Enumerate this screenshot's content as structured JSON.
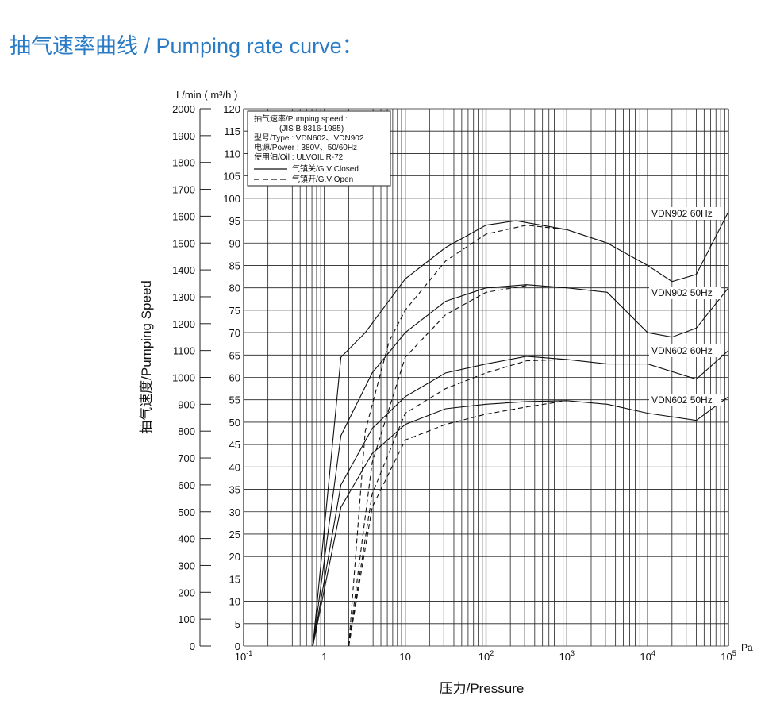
{
  "page_title": "抽气速率曲线 / Pumping rate curve：",
  "chart_data": {
    "type": "line",
    "title": "抽气速率曲线 / Pumping rate curve：",
    "xlabel": "压力/Pressure",
    "x_unit": "Pa",
    "ylabel": "抽气速度/Pumping Speed",
    "y_unit_label": "L/min ( m³/h )",
    "xscale": "log",
    "xlim": [
      0.1,
      100000
    ],
    "ylim": [
      0,
      120
    ],
    "ylim_left": [
      0,
      2000
    ],
    "x_ticks": [
      {
        "base": "10",
        "exp": "-1"
      },
      {
        "base": "1",
        "exp": ""
      },
      {
        "base": "10",
        "exp": ""
      },
      {
        "base": "10",
        "exp": "2"
      },
      {
        "base": "10",
        "exp": "3"
      },
      {
        "base": "10",
        "exp": "4"
      },
      {
        "base": "10",
        "exp": "5"
      }
    ],
    "y_ticks": [
      0,
      5,
      10,
      15,
      20,
      25,
      30,
      35,
      40,
      45,
      50,
      55,
      60,
      65,
      70,
      75,
      80,
      85,
      90,
      95,
      100,
      105,
      110,
      115,
      120
    ],
    "y_ticks_left": [
      0,
      100,
      200,
      300,
      400,
      500,
      600,
      700,
      800,
      900,
      1000,
      1100,
      1200,
      1300,
      1400,
      1500,
      1600,
      1700,
      1800,
      1900,
      2000
    ],
    "grid": true,
    "legend": {
      "lines": [
        "抽气速率/Pumping speed :",
        "(JIS B 8316-1985)",
        "型号/Type  : VDN602、VDN902",
        "电源/Power  : 380V、50/60Hz",
        "使用油/Oil : ULVOIL R-72"
      ],
      "solid": "气镇关/G.V Closed",
      "dashed": "气镇开/G.V Open",
      "placement": "top-left"
    },
    "series": [
      {
        "name": "VDN902  60Hz",
        "style": "solid",
        "x": [
          0.72,
          1.6,
          3.2,
          10,
          31.6,
          100,
          234,
          1000,
          3160,
          10000,
          20000,
          40000,
          100000
        ],
        "y": [
          0,
          64.5,
          70,
          82,
          89,
          94,
          95,
          93,
          90,
          85,
          81.4,
          83,
          97
        ]
      },
      {
        "name": "VDN902  60Hz",
        "style": "dashed",
        "x": [
          2,
          3.2,
          6.3,
          10,
          31.6,
          100,
          316,
          1000
        ],
        "y": [
          0,
          48,
          68,
          75,
          86,
          92,
          94,
          93
        ]
      },
      {
        "name": "VDN902  50Hz",
        "style": "solid",
        "x": [
          0.72,
          1.6,
          3.9,
          10,
          31.6,
          100,
          316,
          1000,
          3160,
          10000,
          20000,
          40000,
          100000
        ],
        "y": [
          0,
          47,
          61,
          70,
          77,
          80,
          80.7,
          80,
          79,
          70,
          69,
          71,
          80
        ]
      },
      {
        "name": "VDN902  50Hz",
        "style": "dashed",
        "x": [
          2,
          3.9,
          10,
          31.6,
          100,
          316
        ],
        "y": [
          0,
          41,
          64.5,
          74,
          79,
          80.5
        ]
      },
      {
        "name": "VDN602  60Hz",
        "style": "solid",
        "x": [
          0.72,
          1.6,
          3.9,
          10,
          31.6,
          100,
          316,
          1000,
          3160,
          10000,
          40000,
          100000
        ],
        "y": [
          0,
          36,
          48.6,
          55.7,
          61,
          63,
          64.7,
          64,
          63,
          63,
          59.6,
          66
        ]
      },
      {
        "name": "VDN602  60Hz",
        "style": "dashed",
        "x": [
          2,
          3.9,
          10,
          31.6,
          100,
          316,
          1000
        ],
        "y": [
          0,
          34,
          52,
          57.5,
          61,
          63.7,
          64
        ]
      },
      {
        "name": "VDN602  50Hz",
        "style": "solid",
        "x": [
          0.72,
          1.6,
          3.9,
          10,
          31.6,
          100,
          316,
          1000,
          3160,
          10000,
          40000,
          100000
        ],
        "y": [
          0,
          31,
          43,
          49.5,
          53,
          54,
          54.6,
          54.8,
          54,
          52,
          50.4,
          55.7
        ]
      },
      {
        "name": "VDN602  50Hz",
        "style": "dashed",
        "x": [
          2,
          3.9,
          10,
          31.6,
          100,
          316,
          1000
        ],
        "y": [
          0,
          31,
          46,
          49.5,
          51.8,
          53.4,
          54.8
        ]
      }
    ],
    "series_labels": [
      "VDN902  60Hz",
      "VDN902  50Hz",
      "VDN602  60Hz",
      "VDN602  50Hz"
    ]
  }
}
